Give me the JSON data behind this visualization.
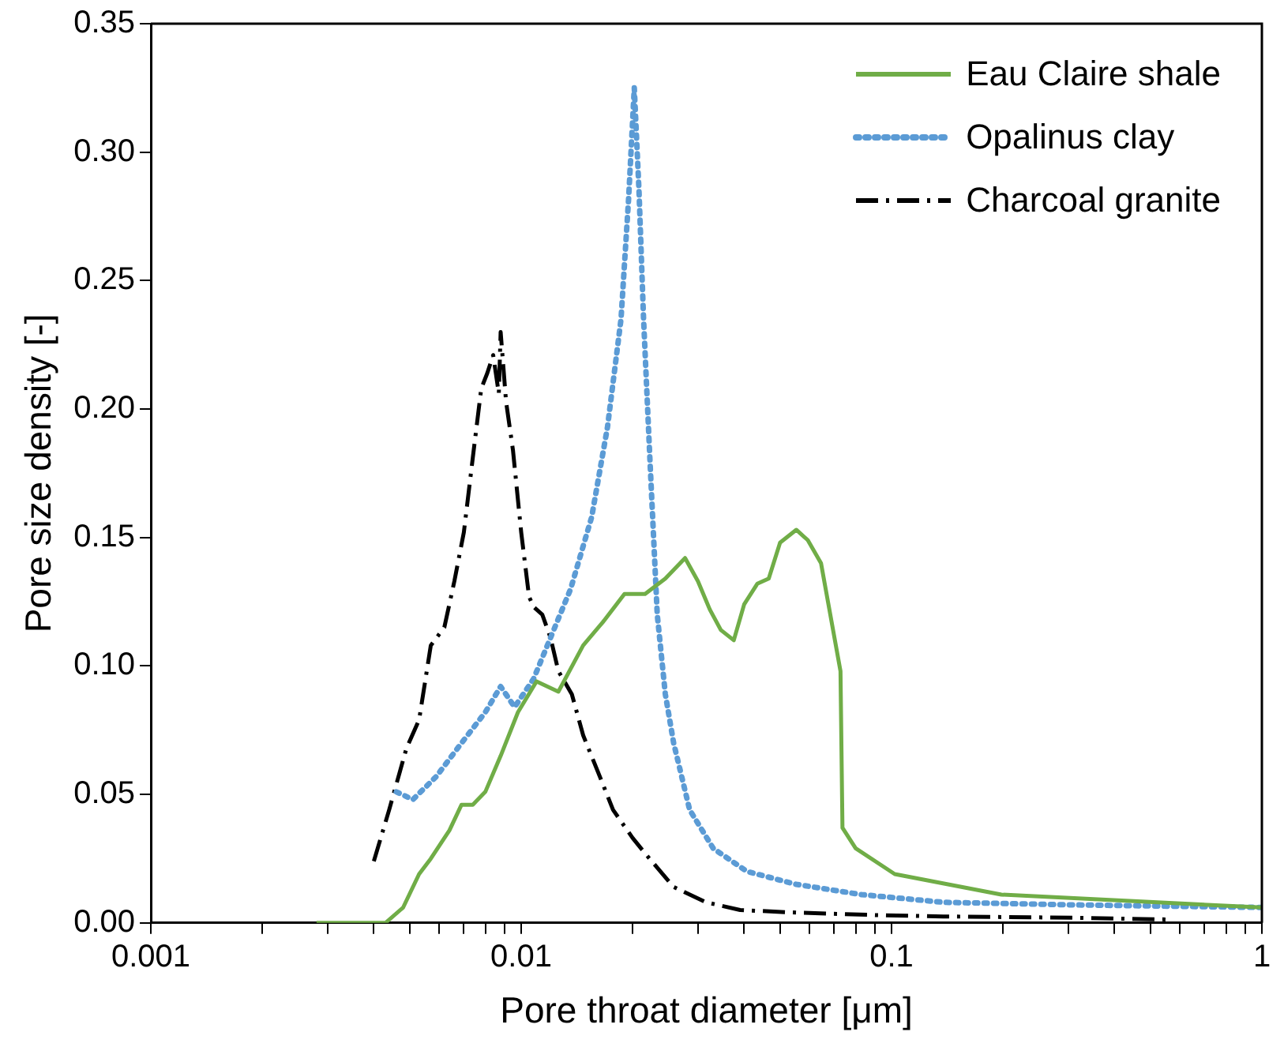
{
  "chart_data": {
    "type": "line",
    "xlabel": "Pore throat diameter [μm]",
    "ylabel": "Pore size density [-]",
    "log": "x",
    "grid": false,
    "legend": "top right",
    "marker": "none",
    "xlim": [
      0.001,
      1
    ],
    "xticks": [
      0.001,
      {
        "value": 0.002,
        "label": null
      },
      {
        "value": 0.003,
        "label": null
      },
      {
        "value": 0.004,
        "label": null
      },
      {
        "value": 0.005,
        "label": null
      },
      {
        "value": 0.006,
        "label": null
      },
      {
        "value": 0.007,
        "label": null
      },
      {
        "value": 0.008,
        "label": null
      },
      {
        "value": 0.009,
        "label": null
      },
      0.01,
      {
        "value": 0.02,
        "label": null
      },
      {
        "value": 0.03,
        "label": null
      },
      {
        "value": 0.04,
        "label": null
      },
      {
        "value": 0.05,
        "label": null
      },
      {
        "value": 0.06,
        "label": null
      },
      {
        "value": 0.07,
        "label": null
      },
      {
        "value": 0.08,
        "label": null
      },
      {
        "value": 0.09,
        "label": null
      },
      0.1,
      {
        "value": 0.2,
        "label": null
      },
      {
        "value": 0.3,
        "label": null
      },
      {
        "value": 0.4,
        "label": null
      },
      {
        "value": 0.5,
        "label": null
      },
      {
        "value": 0.6,
        "label": null
      },
      {
        "value": 0.7,
        "label": null
      },
      {
        "value": 0.8,
        "label": null
      },
      {
        "value": 0.9,
        "label": null
      },
      1
    ],
    "ylim": [
      0,
      0.35
    ],
    "yticks": [
      {
        "value": 0,
        "label": "0.00"
      },
      {
        "value": 0.05,
        "label": "0.05"
      },
      {
        "value": 0.1,
        "label": "0.10"
      },
      {
        "value": 0.15,
        "label": "0.15"
      },
      {
        "value": 0.2,
        "label": "0.20"
      },
      {
        "value": 0.25,
        "label": "0.25"
      },
      {
        "value": 0.3,
        "label": "0.30"
      },
      {
        "value": 0.35,
        "label": "0.35"
      }
    ],
    "series": [
      {
        "name": "Eau Claire shale",
        "color": "#70ad47",
        "line_style": "solid",
        "x": [
          0.0028,
          0.0043,
          0.0048,
          0.0053,
          0.0057,
          0.0064,
          0.0069,
          0.0074,
          0.008,
          0.0088,
          0.0098,
          0.011,
          0.0126,
          0.0147,
          0.0166,
          0.019,
          0.0216,
          0.0245,
          0.0277,
          0.03,
          0.0323,
          0.0346,
          0.0375,
          0.04,
          0.0434,
          0.0466,
          0.05,
          0.0553,
          0.0594,
          0.0645,
          0.0728,
          0.0737,
          0.08,
          0.102,
          0.198,
          1
        ],
        "values": [
          0,
          0,
          0.006,
          0.019,
          0.025,
          0.036,
          0.046,
          0.046,
          0.051,
          0.065,
          0.082,
          0.094,
          0.09,
          0.108,
          0.117,
          0.128,
          0.128,
          0.134,
          0.142,
          0.133,
          0.122,
          0.114,
          0.11,
          0.124,
          0.132,
          0.134,
          0.148,
          0.153,
          0.149,
          0.14,
          0.098,
          0.037,
          0.029,
          0.019,
          0.011,
          0.006
        ]
      },
      {
        "name": "Opalinus clay",
        "color": "#5b9bd5",
        "line_style": "dotted",
        "x": [
          0.0046,
          0.0051,
          0.0059,
          0.0069,
          0.008,
          0.0088,
          0.0096,
          0.0108,
          0.012,
          0.0136,
          0.0155,
          0.0171,
          0.0186,
          0.0195,
          0.0202,
          0.0208,
          0.0214,
          0.0223,
          0.0233,
          0.0245,
          0.0258,
          0.0285,
          0.033,
          0.0407,
          0.0553,
          0.083,
          0.138,
          0.312,
          1
        ],
        "values": [
          0.051,
          0.048,
          0.057,
          0.07,
          0.082,
          0.092,
          0.084,
          0.095,
          0.111,
          0.13,
          0.158,
          0.193,
          0.235,
          0.282,
          0.325,
          0.285,
          0.235,
          0.178,
          0.12,
          0.089,
          0.07,
          0.044,
          0.029,
          0.02,
          0.015,
          0.011,
          0.008,
          0.007,
          0.006
        ]
      },
      {
        "name": "Charcoal granite",
        "color": "#000000",
        "line_style": "dashdot",
        "x": [
          0.004,
          0.0044,
          0.0049,
          0.0053,
          0.0057,
          0.0062,
          0.0066,
          0.007,
          0.0074,
          0.0078,
          0.0081,
          0.0084,
          0.0087,
          0.0088,
          0.0091,
          0.0095,
          0.01,
          0.0105,
          0.0108,
          0.0114,
          0.012,
          0.0126,
          0.0137,
          0.0147,
          0.0163,
          0.0177,
          0.02,
          0.0222,
          0.0258,
          0.0316,
          0.039,
          0.0553,
          0.092,
          0.138,
          0.312,
          0.57
        ],
        "values": [
          0.024,
          0.044,
          0.068,
          0.079,
          0.108,
          0.115,
          0.133,
          0.152,
          0.181,
          0.208,
          0.214,
          0.221,
          0.206,
          0.23,
          0.203,
          0.184,
          0.152,
          0.127,
          0.123,
          0.12,
          0.111,
          0.098,
          0.089,
          0.073,
          0.057,
          0.044,
          0.033,
          0.025,
          0.014,
          0.008,
          0.005,
          0.004,
          0.003,
          0.0025,
          0.002,
          0.0013
        ]
      }
    ]
  }
}
